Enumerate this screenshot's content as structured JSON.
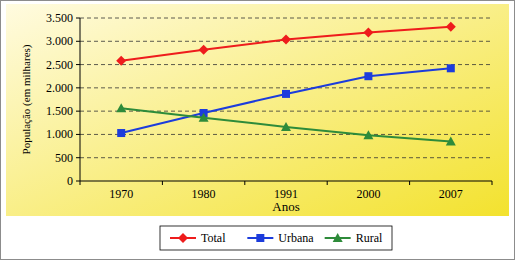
{
  "chart_data": {
    "type": "line",
    "x_label": "Anos",
    "y_label": "População (em milhares)",
    "categories": [
      "1970",
      "1980",
      "1991",
      "2000",
      "2007"
    ],
    "series": [
      {
        "name": "Total",
        "color": "#ee1c1c",
        "marker": "diamond",
        "values": [
          2580,
          2820,
          3040,
          3190,
          3310
        ]
      },
      {
        "name": "Urbana",
        "color": "#1c3cdc",
        "marker": "square",
        "values": [
          1030,
          1460,
          1870,
          2250,
          2420
        ]
      },
      {
        "name": "Rural",
        "color": "#2e8b3a",
        "marker": "triangle",
        "values": [
          1560,
          1360,
          1160,
          980,
          850
        ]
      }
    ],
    "ylim": [
      0,
      3500
    ],
    "yticks": [
      0,
      500,
      {
        "value": 1000,
        "label": "1.000"
      },
      {
        "value": 1500,
        "label": "1.500"
      },
      {
        "value": 2000,
        "label": "2.000"
      },
      {
        "value": 2500,
        "label": "2.500"
      },
      {
        "value": 3000,
        "label": "3.000"
      },
      {
        "value": 3500,
        "label": "3.500"
      }
    ],
    "grid": true,
    "legend": "bottom"
  }
}
